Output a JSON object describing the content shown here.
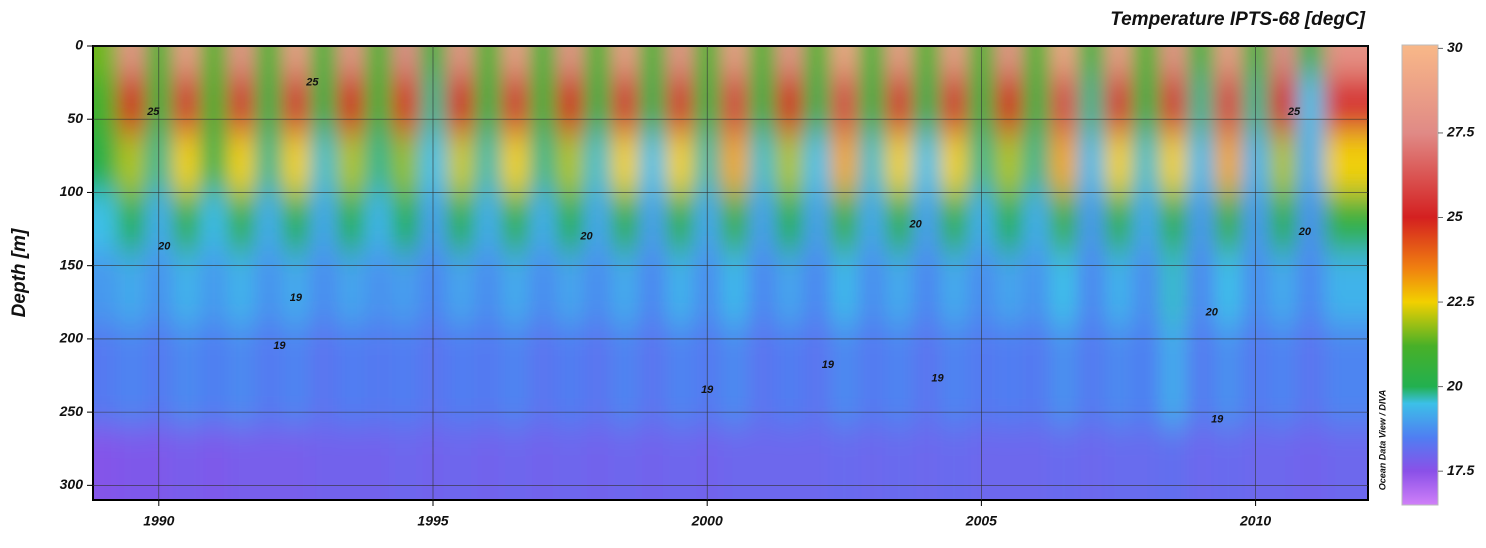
{
  "chart_data": {
    "type": "heatmap",
    "title": "Temperature IPTS-68 [degC]",
    "y_label": "Depth [m]",
    "credit": "Ocean Data View / DIVA",
    "x": [
      1989,
      1989.5,
      1990,
      1990.5,
      1991,
      1991.5,
      1992,
      1992.5,
      1993,
      1993.5,
      1994,
      1994.5,
      1995,
      1995.5,
      1996,
      1996.5,
      1997,
      1997.5,
      1998,
      1998.5,
      1999,
      1999.5,
      2000,
      2000.5,
      2001,
      2001.5,
      2002,
      2002.5,
      2003,
      2003.5,
      2004,
      2004.5,
      2005,
      2005.5,
      2006,
      2006.5,
      2007,
      2007.5,
      2008,
      2008.5,
      2009,
      2009.5,
      2010,
      2010.5,
      2011,
      2011.5
    ],
    "y": [
      0,
      40,
      80,
      120,
      160,
      220,
      300
    ],
    "z": [
      [
        21.5,
        28,
        21,
        28.5,
        21.2,
        28,
        21,
        28.5,
        20.8,
        28,
        21,
        27.5,
        20.5,
        28,
        21,
        28.5,
        20.8,
        28,
        21,
        28.5,
        20.8,
        28,
        21,
        28.5,
        21,
        28,
        21,
        29,
        20.8,
        28.5,
        21,
        28.5,
        21,
        28,
        21,
        29,
        20.5,
        28.5,
        21,
        28,
        20.5,
        28.5,
        20.5,
        27.5,
        20,
        28
      ],
      [
        21,
        25,
        20.5,
        25.5,
        20.8,
        25.5,
        20.3,
        25.5,
        20.2,
        25,
        20.5,
        24.8,
        19.8,
        25,
        20.3,
        25.5,
        20.5,
        25,
        20.2,
        25.5,
        20,
        25.5,
        20.3,
        25.8,
        20.2,
        25,
        20,
        26,
        20.2,
        25.5,
        20,
        25.5,
        20.3,
        25,
        20.3,
        26,
        19.8,
        25.5,
        20.2,
        25.5,
        19.8,
        25.8,
        19.8,
        25,
        19.5,
        25.5
      ],
      [
        20.2,
        22,
        19.8,
        22.5,
        20,
        22.5,
        19.8,
        22.5,
        19.6,
        22,
        19.8,
        21.8,
        19.5,
        22.2,
        19.7,
        22.5,
        19.8,
        22,
        19.6,
        22.5,
        19.5,
        22.5,
        19.7,
        23,
        19.6,
        22,
        19.5,
        23,
        19.6,
        22.5,
        19.5,
        22.5,
        19.8,
        22,
        19.8,
        23,
        19.4,
        22.5,
        19.6,
        22.5,
        19.4,
        23,
        19.3,
        22,
        19.2,
        22.5
      ],
      [
        19.5,
        20.2,
        19.2,
        20.5,
        19.4,
        20.5,
        19.2,
        20.3,
        19.1,
        20.2,
        19.3,
        20,
        19,
        20.3,
        19.2,
        20.5,
        19.2,
        20.2,
        19.1,
        20.5,
        19,
        20.5,
        19.1,
        20.8,
        19,
        20.2,
        19,
        20.8,
        19.1,
        20.5,
        19,
        20.5,
        19.2,
        20.2,
        19.2,
        20.8,
        18.9,
        20.5,
        19.1,
        20.5,
        18.9,
        20.8,
        18.9,
        20.3,
        18.8,
        20.5
      ],
      [
        18.9,
        19.2,
        18.8,
        19.3,
        18.9,
        19.3,
        18.8,
        19.2,
        18.7,
        19.1,
        18.8,
        19,
        18.6,
        19.1,
        18.7,
        19.2,
        18.7,
        19.1,
        18.7,
        19.2,
        18.6,
        19.3,
        18.7,
        19.4,
        18.6,
        19.1,
        18.6,
        19.4,
        18.7,
        19.2,
        18.6,
        19.2,
        18.7,
        19.1,
        18.8,
        19.5,
        18.6,
        19.3,
        18.7,
        19.6,
        18.6,
        19.5,
        18.7,
        19.2,
        18.6,
        19.3
      ],
      [
        18.4,
        18.6,
        18.4,
        18.7,
        18.5,
        18.7,
        18.4,
        18.6,
        18.3,
        18.5,
        18.4,
        18.5,
        18.3,
        18.5,
        18.4,
        18.6,
        18.3,
        18.5,
        18.3,
        18.6,
        18.3,
        18.6,
        18.4,
        18.7,
        18.3,
        18.5,
        18.3,
        18.7,
        18.4,
        18.6,
        18.3,
        18.6,
        18.4,
        18.5,
        18.4,
        18.8,
        18.4,
        18.7,
        18.5,
        19.2,
        18.4,
        18.8,
        18.4,
        18.6,
        18.3,
        18.6
      ],
      [
        17.6,
        17.7,
        17.7,
        17.8,
        17.7,
        17.8,
        17.8,
        17.8,
        17.9,
        17.9,
        17.9,
        18,
        17.9,
        18,
        17.9,
        18,
        17.9,
        18,
        17.9,
        18,
        17.9,
        18,
        17.9,
        18,
        18,
        18,
        18,
        18.1,
        18,
        18.1,
        18,
        18.1,
        18,
        18,
        18,
        18.1,
        18,
        18.1,
        18.1,
        18.2,
        18,
        18.1,
        18,
        18,
        17.9,
        18
      ]
    ],
    "xlim": [
      1988.8,
      2012.05
    ],
    "ylim": [
      0,
      310
    ],
    "y_reversed": true,
    "xticks": [
      1990,
      1995,
      2000,
      2005,
      2010
    ],
    "yticks": [
      0,
      50,
      100,
      150,
      200,
      250,
      300
    ],
    "zlim": [
      16.5,
      30.1
    ],
    "zticks": [
      17.5,
      20,
      22.5,
      25,
      27.5,
      30
    ],
    "colorscale": [
      [
        16.5,
        "#d080f8"
      ],
      [
        17.5,
        "#8a50e8"
      ],
      [
        18.5,
        "#4f7ef2"
      ],
      [
        19.5,
        "#3cc0e8"
      ],
      [
        20,
        "#22b050"
      ],
      [
        21.2,
        "#48b028"
      ],
      [
        22.5,
        "#f2d000"
      ],
      [
        23.5,
        "#f08010"
      ],
      [
        25,
        "#d42020"
      ],
      [
        27.5,
        "#e08a86"
      ],
      [
        30.1,
        "#f8b888"
      ]
    ],
    "grid": true,
    "annotations": [
      {
        "text": "25",
        "x": 1989.9,
        "y": 45
      },
      {
        "text": "25",
        "x": 1992.8,
        "y": 25
      },
      {
        "text": "20",
        "x": 1990.1,
        "y": 137
      },
      {
        "text": "19",
        "x": 1992.5,
        "y": 172
      },
      {
        "text": "19",
        "x": 1992.2,
        "y": 205
      },
      {
        "text": "20",
        "x": 1997.8,
        "y": 130
      },
      {
        "text": "19",
        "x": 2000,
        "y": 235
      },
      {
        "text": "19",
        "x": 2002.2,
        "y": 218
      },
      {
        "text": "19",
        "x": 2004.2,
        "y": 227
      },
      {
        "text": "20",
        "x": 2003.8,
        "y": 122
      },
      {
        "text": "20",
        "x": 2009.2,
        "y": 182
      },
      {
        "text": "19",
        "x": 2009.3,
        "y": 255
      },
      {
        "text": "20",
        "x": 2010.9,
        "y": 127
      },
      {
        "text": "25",
        "x": 2010.7,
        "y": 45
      }
    ]
  }
}
